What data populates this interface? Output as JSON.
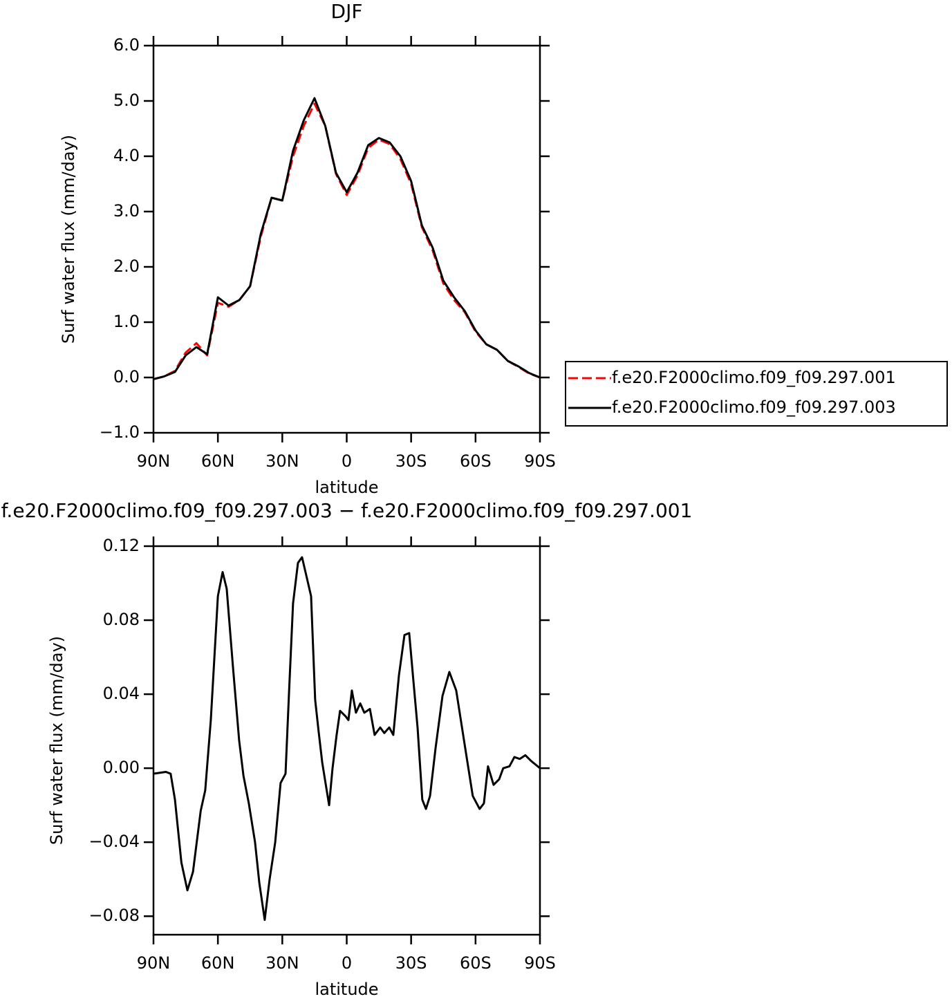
{
  "chart_data": [
    {
      "type": "line",
      "title": "DJF",
      "xlabel": "latitude",
      "ylabel": "Surf water flux (mm/day)",
      "xlim": [
        90,
        -90
      ],
      "ylim": [
        -1,
        6
      ],
      "xticks": [
        {
          "value": 90,
          "label": "90N"
        },
        {
          "value": 60,
          "label": "60N"
        },
        {
          "value": 30,
          "label": "30N"
        },
        0,
        {
          "value": -30,
          "label": "30S"
        },
        {
          "value": -60,
          "label": "60S"
        },
        {
          "value": -90,
          "label": "90S"
        }
      ],
      "yticks": [
        {
          "value": 6,
          "label": "6.0"
        },
        {
          "value": 5,
          "label": "5.0"
        },
        {
          "value": 4,
          "label": "4.0"
        },
        {
          "value": 3,
          "label": "3.0"
        },
        {
          "value": 2,
          "label": "2.0"
        },
        {
          "value": 1,
          "label": "1.0"
        },
        {
          "value": 0,
          "label": "0.0"
        },
        {
          "value": -1,
          "label": "−1.0"
        }
      ],
      "legend": "right",
      "x": [
        90,
        85,
        80,
        75,
        70,
        65,
        60,
        55,
        50,
        45,
        40,
        35,
        30,
        25,
        20,
        15,
        10,
        5,
        0,
        -5,
        -10,
        -15,
        -20,
        -25,
        -30,
        -35,
        -40,
        -45,
        -50,
        -55,
        -60,
        -65,
        -70,
        -75,
        -80,
        -85,
        -90
      ],
      "series": [
        {
          "name": "f.e20.F2000climo.f09_f09.297.001",
          "color": "#ff0000",
          "dashed": true,
          "values": [
            -0.03,
            0.02,
            0.12,
            0.45,
            0.62,
            0.4,
            1.35,
            1.28,
            1.4,
            1.65,
            2.55,
            3.25,
            3.2,
            4.0,
            4.55,
            4.95,
            4.55,
            3.68,
            3.3,
            3.65,
            4.15,
            4.3,
            4.22,
            3.95,
            3.5,
            2.72,
            2.3,
            1.7,
            1.4,
            1.18,
            0.83,
            0.6,
            0.5,
            0.3,
            0.19,
            0.07,
            0.0
          ]
        },
        {
          "name": "f.e20.F2000climo.f09_f09.297.003",
          "color": "#000000",
          "dashed": false,
          "values": [
            -0.03,
            0.02,
            0.1,
            0.4,
            0.55,
            0.42,
            1.45,
            1.3,
            1.4,
            1.65,
            2.6,
            3.25,
            3.2,
            4.1,
            4.65,
            5.05,
            4.55,
            3.7,
            3.35,
            3.7,
            4.2,
            4.33,
            4.25,
            4.0,
            3.55,
            2.75,
            2.35,
            1.75,
            1.45,
            1.2,
            0.85,
            0.6,
            0.5,
            0.3,
            0.2,
            0.08,
            0.0
          ]
        }
      ]
    },
    {
      "type": "line",
      "title": "f.e20.F2000climo.f09_f09.297.003 − f.e20.F2000climo.f09_f09.297.001",
      "xlabel": "latitude",
      "ylabel": "Surf water flux (mm/day)",
      "xlim": [
        90,
        -90
      ],
      "ylim": [
        -0.09,
        0.12
      ],
      "xticks": [
        {
          "value": 90,
          "label": "90N"
        },
        {
          "value": 60,
          "label": "60N"
        },
        {
          "value": 30,
          "label": "30N"
        },
        0,
        {
          "value": -30,
          "label": "30S"
        },
        {
          "value": -60,
          "label": "60S"
        },
        {
          "value": -90,
          "label": "90S"
        }
      ],
      "yticks": [
        0.12,
        0.08,
        0.04,
        {
          "value": 0,
          "label": "0.00"
        },
        {
          "value": -0.04,
          "label": "−0.04"
        },
        {
          "value": -0.08,
          "label": "−0.08"
        }
      ],
      "x": [
        90,
        84.2,
        82,
        80,
        77,
        74.2,
        71.6,
        68,
        65.9,
        63.3,
        60,
        57.8,
        55.9,
        53,
        50.1,
        48.1,
        45.6,
        42.7,
        40.7,
        38.2,
        35.9,
        33.3,
        30.8,
        28.5,
        26.9,
        25,
        22.7,
        20.8,
        18.8,
        16.6,
        14.7,
        13.1,
        11.4,
        8.2,
        6.6,
        4.7,
        3.1,
        0.5,
        -0.8,
        -2.4,
        -4.3,
        -6.3,
        -8.2,
        -10.8,
        -13,
        -15.6,
        -17.5,
        -19.8,
        -21.7,
        -24.3,
        -26.9,
        -29.1,
        -31,
        -33,
        -35.2,
        -36.9,
        -38.8,
        -41.4,
        -44.6,
        -47.8,
        -51,
        -54.9,
        -58.7,
        -61.9,
        -63.9,
        -65.8,
        -68.4,
        -71,
        -72.9,
        -75.8,
        -78.1,
        -80.6,
        -83.2,
        -85.8,
        -90
      ],
      "series": [
        {
          "color": "#000000",
          "dashed": false,
          "values": [
            -0.003,
            -0.002,
            -0.003,
            -0.017,
            -0.051,
            -0.066,
            -0.056,
            -0.023,
            -0.012,
            0.026,
            0.093,
            0.106,
            0.097,
            0.055,
            0.015,
            -0.004,
            -0.019,
            -0.04,
            -0.062,
            -0.082,
            -0.06,
            -0.04,
            -0.008,
            -0.003,
            0.04,
            0.089,
            0.111,
            0.114,
            0.104,
            0.093,
            0.037,
            0.02,
            0.003,
            -0.02,
            0.0,
            0.018,
            0.031,
            0.028,
            0.026,
            0.042,
            0.03,
            0.035,
            0.03,
            0.032,
            0.018,
            0.022,
            0.019,
            0.022,
            0.018,
            0.05,
            0.072,
            0.073,
            0.048,
            0.022,
            -0.017,
            -0.022,
            -0.015,
            0.011,
            0.039,
            0.052,
            0.042,
            0.013,
            -0.015,
            -0.022,
            -0.019,
            0.001,
            -0.009,
            -0.006,
            0.0,
            0.001,
            0.006,
            0.005,
            0.007,
            0.004,
            0.0
          ]
        }
      ]
    }
  ]
}
